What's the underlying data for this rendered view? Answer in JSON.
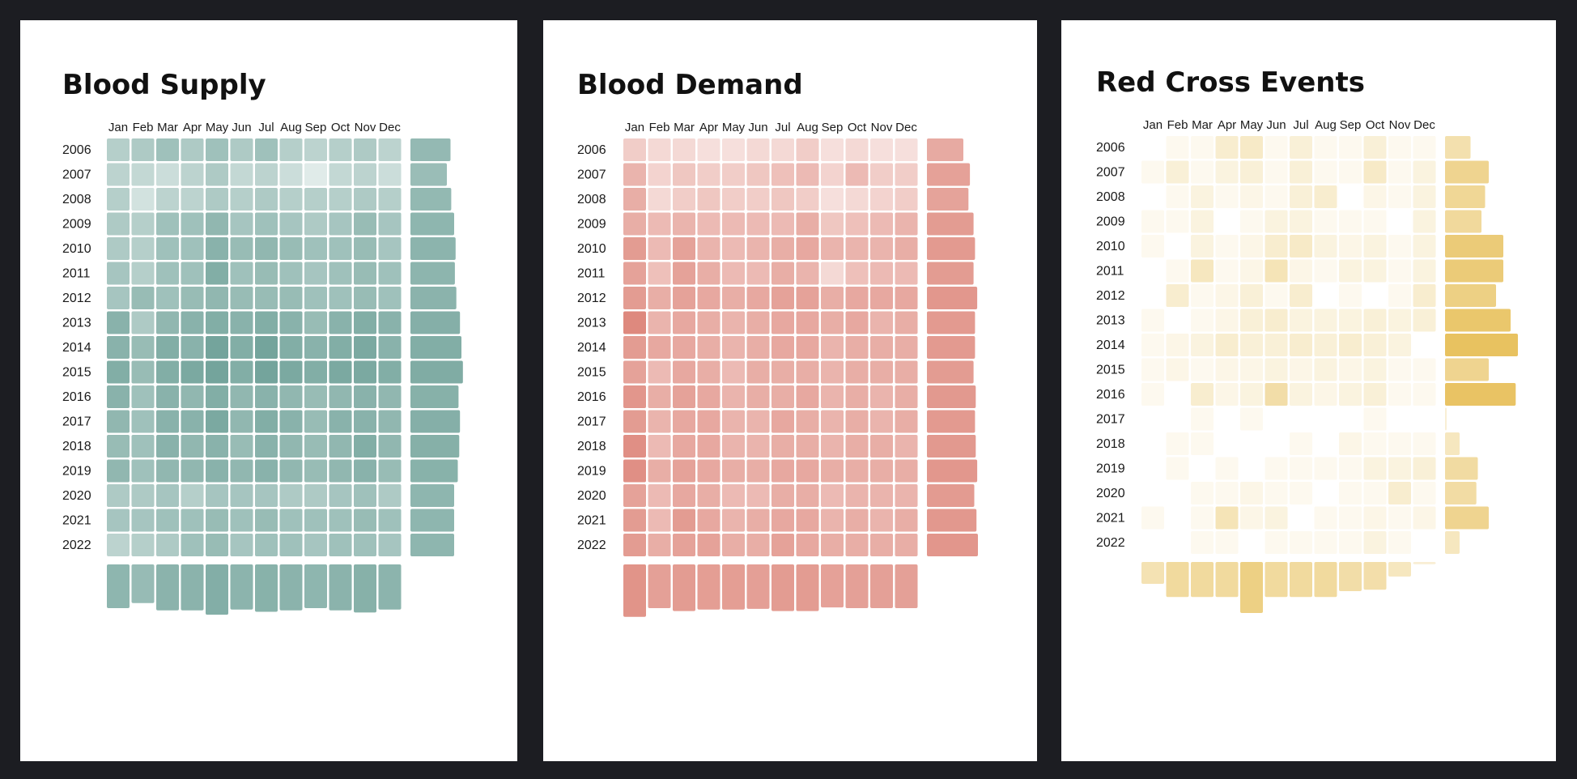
{
  "chart_data": [
    {
      "type": "heatmap",
      "title": "Blood Supply",
      "color": "#5e968c",
      "months": [
        "Jan",
        "Feb",
        "Mar",
        "Apr",
        "May",
        "Jun",
        "Jul",
        "Aug",
        "Sep",
        "Oct",
        "Nov",
        "Dec"
      ],
      "years": [
        "2006",
        "2007",
        "2008",
        "2009",
        "2010",
        "2011",
        "2012",
        "2013",
        "2014",
        "2015",
        "2016",
        "2017",
        "2018",
        "2019",
        "2020",
        "2021",
        "2022"
      ],
      "values": [
        [
          0.4,
          0.45,
          0.55,
          0.45,
          0.55,
          0.45,
          0.55,
          0.4,
          0.35,
          0.4,
          0.45,
          0.35
        ],
        [
          0.35,
          0.3,
          0.25,
          0.35,
          0.45,
          0.3,
          0.35,
          0.25,
          0.1,
          0.3,
          0.35,
          0.25
        ],
        [
          0.4,
          0.2,
          0.35,
          0.35,
          0.45,
          0.4,
          0.45,
          0.4,
          0.4,
          0.4,
          0.45,
          0.4
        ],
        [
          0.45,
          0.4,
          0.55,
          0.55,
          0.65,
          0.5,
          0.55,
          0.5,
          0.45,
          0.5,
          0.6,
          0.5
        ],
        [
          0.45,
          0.4,
          0.55,
          0.55,
          0.7,
          0.6,
          0.65,
          0.6,
          0.55,
          0.55,
          0.6,
          0.5
        ],
        [
          0.5,
          0.4,
          0.55,
          0.55,
          0.75,
          0.55,
          0.6,
          0.55,
          0.5,
          0.55,
          0.6,
          0.55
        ],
        [
          0.5,
          0.6,
          0.55,
          0.6,
          0.65,
          0.6,
          0.6,
          0.6,
          0.55,
          0.55,
          0.6,
          0.55
        ],
        [
          0.7,
          0.45,
          0.65,
          0.7,
          0.75,
          0.7,
          0.75,
          0.7,
          0.6,
          0.7,
          0.75,
          0.7
        ],
        [
          0.7,
          0.6,
          0.75,
          0.7,
          0.85,
          0.75,
          0.85,
          0.75,
          0.7,
          0.75,
          0.8,
          0.7
        ],
        [
          0.75,
          0.6,
          0.75,
          0.8,
          0.85,
          0.75,
          0.85,
          0.8,
          0.75,
          0.8,
          0.8,
          0.75
        ],
        [
          0.7,
          0.55,
          0.7,
          0.65,
          0.75,
          0.65,
          0.7,
          0.65,
          0.6,
          0.65,
          0.7,
          0.65
        ],
        [
          0.65,
          0.55,
          0.7,
          0.7,
          0.8,
          0.65,
          0.75,
          0.7,
          0.6,
          0.7,
          0.7,
          0.65
        ],
        [
          0.6,
          0.55,
          0.7,
          0.65,
          0.7,
          0.6,
          0.7,
          0.65,
          0.6,
          0.65,
          0.75,
          0.65
        ],
        [
          0.65,
          0.55,
          0.65,
          0.65,
          0.7,
          0.65,
          0.7,
          0.65,
          0.6,
          0.65,
          0.7,
          0.6
        ],
        [
          0.45,
          0.45,
          0.5,
          0.4,
          0.5,
          0.5,
          0.5,
          0.45,
          0.45,
          0.5,
          0.55,
          0.45
        ],
        [
          0.5,
          0.5,
          0.55,
          0.55,
          0.6,
          0.55,
          0.6,
          0.55,
          0.55,
          0.55,
          0.6,
          0.55
        ],
        [
          0.35,
          0.4,
          0.45,
          0.55,
          0.6,
          0.5,
          0.55,
          0.55,
          0.5,
          0.55,
          0.55,
          0.5
        ]
      ],
      "row_totals": [
        0.55,
        0.5,
        0.56,
        0.6,
        0.62,
        0.61,
        0.63,
        0.68,
        0.7,
        0.72,
        0.66,
        0.68,
        0.67,
        0.65,
        0.6,
        0.6,
        0.6
      ],
      "col_totals": [
        0.6,
        0.53,
        0.63,
        0.63,
        0.69,
        0.62,
        0.65,
        0.63,
        0.6,
        0.63,
        0.66,
        0.62
      ]
    },
    {
      "type": "heatmap",
      "title": "Blood Demand",
      "color": "#d9776a",
      "months": [
        "Jan",
        "Feb",
        "Mar",
        "Apr",
        "May",
        "Jun",
        "Jul",
        "Aug",
        "Sep",
        "Oct",
        "Nov",
        "Dec"
      ],
      "years": [
        "2006",
        "2007",
        "2008",
        "2009",
        "2010",
        "2011",
        "2012",
        "2013",
        "2014",
        "2015",
        "2016",
        "2017",
        "2018",
        "2019",
        "2020",
        "2021",
        "2022"
      ],
      "values": [
        [
          0.3,
          0.2,
          0.2,
          0.15,
          0.15,
          0.2,
          0.2,
          0.3,
          0.15,
          0.2,
          0.15,
          0.15
        ],
        [
          0.5,
          0.25,
          0.35,
          0.3,
          0.3,
          0.35,
          0.4,
          0.45,
          0.25,
          0.45,
          0.3,
          0.3
        ],
        [
          0.55,
          0.2,
          0.3,
          0.35,
          0.3,
          0.3,
          0.35,
          0.3,
          0.15,
          0.2,
          0.25,
          0.3
        ],
        [
          0.55,
          0.45,
          0.5,
          0.45,
          0.45,
          0.45,
          0.45,
          0.55,
          0.35,
          0.4,
          0.45,
          0.5
        ],
        [
          0.7,
          0.45,
          0.65,
          0.5,
          0.45,
          0.5,
          0.55,
          0.6,
          0.5,
          0.5,
          0.5,
          0.55
        ],
        [
          0.65,
          0.4,
          0.65,
          0.55,
          0.45,
          0.45,
          0.55,
          0.5,
          0.2,
          0.4,
          0.45,
          0.45
        ],
        [
          0.7,
          0.55,
          0.65,
          0.6,
          0.55,
          0.6,
          0.65,
          0.65,
          0.55,
          0.6,
          0.6,
          0.6
        ],
        [
          0.85,
          0.5,
          0.6,
          0.55,
          0.5,
          0.55,
          0.6,
          0.6,
          0.55,
          0.6,
          0.5,
          0.55
        ],
        [
          0.7,
          0.6,
          0.6,
          0.55,
          0.5,
          0.55,
          0.6,
          0.6,
          0.5,
          0.55,
          0.55,
          0.55
        ],
        [
          0.65,
          0.45,
          0.6,
          0.55,
          0.45,
          0.55,
          0.55,
          0.55,
          0.5,
          0.55,
          0.55,
          0.55
        ],
        [
          0.75,
          0.55,
          0.65,
          0.6,
          0.5,
          0.55,
          0.55,
          0.6,
          0.5,
          0.55,
          0.5,
          0.55
        ],
        [
          0.7,
          0.5,
          0.6,
          0.6,
          0.5,
          0.5,
          0.6,
          0.55,
          0.5,
          0.55,
          0.5,
          0.55
        ],
        [
          0.8,
          0.45,
          0.6,
          0.6,
          0.5,
          0.5,
          0.55,
          0.55,
          0.5,
          0.55,
          0.55,
          0.5
        ],
        [
          0.8,
          0.55,
          0.65,
          0.6,
          0.55,
          0.55,
          0.6,
          0.6,
          0.55,
          0.55,
          0.55,
          0.55
        ],
        [
          0.65,
          0.45,
          0.6,
          0.55,
          0.45,
          0.45,
          0.55,
          0.55,
          0.45,
          0.5,
          0.5,
          0.5
        ],
        [
          0.7,
          0.45,
          0.7,
          0.6,
          0.5,
          0.55,
          0.6,
          0.6,
          0.5,
          0.55,
          0.5,
          0.55
        ],
        [
          0.7,
          0.55,
          0.65,
          0.65,
          0.55,
          0.55,
          0.65,
          0.6,
          0.55,
          0.55,
          0.55,
          0.55
        ]
      ],
      "row_totals": [
        0.5,
        0.59,
        0.57,
        0.64,
        0.66,
        0.64,
        0.69,
        0.66,
        0.66,
        0.64,
        0.67,
        0.66,
        0.67,
        0.69,
        0.65,
        0.68,
        0.7
      ],
      "col_totals": [
        0.72,
        0.6,
        0.64,
        0.62,
        0.62,
        0.61,
        0.64,
        0.64,
        0.59,
        0.6,
        0.6,
        0.6
      ]
    },
    {
      "type": "heatmap",
      "title": "Red Cross Events",
      "color": "#e8c260",
      "months": [
        "Jan",
        "Feb",
        "Mar",
        "Apr",
        "May",
        "Jun",
        "Jul",
        "Aug",
        "Sep",
        "Oct",
        "Nov",
        "Dec"
      ],
      "years": [
        "2006",
        "2007",
        "2008",
        "2009",
        "2010",
        "2011",
        "2012",
        "2013",
        "2014",
        "2015",
        "2016",
        "2017",
        "2018",
        "2019",
        "2020",
        "2021",
        "2022"
      ],
      "values": [
        [
          0.0,
          0.1,
          0.1,
          0.3,
          0.35,
          0.1,
          0.25,
          0.1,
          0.1,
          0.25,
          0.1,
          0.1
        ],
        [
          0.1,
          0.25,
          0.1,
          0.2,
          0.25,
          0.1,
          0.25,
          0.1,
          0.1,
          0.35,
          0.1,
          0.2
        ],
        [
          0.0,
          0.1,
          0.2,
          0.1,
          0.15,
          0.1,
          0.25,
          0.3,
          0.0,
          0.15,
          0.1,
          0.2
        ],
        [
          0.1,
          0.1,
          0.2,
          0.0,
          0.1,
          0.2,
          0.2,
          0.1,
          0.1,
          0.1,
          0.0,
          0.2
        ],
        [
          0.1,
          0.0,
          0.2,
          0.1,
          0.15,
          0.3,
          0.35,
          0.2,
          0.15,
          0.2,
          0.1,
          0.2
        ],
        [
          0.0,
          0.1,
          0.4,
          0.1,
          0.15,
          0.45,
          0.15,
          0.1,
          0.2,
          0.2,
          0.1,
          0.2
        ],
        [
          0.0,
          0.3,
          0.1,
          0.15,
          0.25,
          0.1,
          0.3,
          0.0,
          0.1,
          0.0,
          0.1,
          0.3
        ],
        [
          0.1,
          0.0,
          0.1,
          0.15,
          0.25,
          0.3,
          0.2,
          0.2,
          0.2,
          0.25,
          0.2,
          0.25
        ],
        [
          0.1,
          0.15,
          0.2,
          0.3,
          0.25,
          0.25,
          0.3,
          0.25,
          0.3,
          0.25,
          0.2,
          0.0
        ],
        [
          0.1,
          0.15,
          0.1,
          0.15,
          0.15,
          0.2,
          0.15,
          0.2,
          0.15,
          0.2,
          0.1,
          0.1
        ],
        [
          0.1,
          0.0,
          0.3,
          0.15,
          0.2,
          0.55,
          0.2,
          0.15,
          0.2,
          0.25,
          0.1,
          0.1
        ],
        [
          0.0,
          0.0,
          0.1,
          0.0,
          0.1,
          0.0,
          0.0,
          0.0,
          0.0,
          0.1,
          0.0,
          0.0
        ],
        [
          0.0,
          0.1,
          0.1,
          0.0,
          0.0,
          0.0,
          0.1,
          0.0,
          0.15,
          0.1,
          0.1,
          0.1
        ],
        [
          0.0,
          0.1,
          0.0,
          0.1,
          0.0,
          0.1,
          0.1,
          0.1,
          0.1,
          0.2,
          0.2,
          0.25
        ],
        [
          0.0,
          0.0,
          0.1,
          0.1,
          0.15,
          0.1,
          0.1,
          0.0,
          0.1,
          0.1,
          0.3,
          0.1
        ],
        [
          0.1,
          0.0,
          0.1,
          0.45,
          0.15,
          0.2,
          0.0,
          0.1,
          0.1,
          0.15,
          0.1,
          0.15
        ],
        [
          0.0,
          0.0,
          0.1,
          0.1,
          0.0,
          0.1,
          0.1,
          0.1,
          0.1,
          0.2,
          0.1,
          0.0
        ]
      ],
      "row_totals": [
        0.35,
        0.6,
        0.55,
        0.5,
        0.8,
        0.8,
        0.7,
        0.9,
        1.0,
        0.6,
        0.97,
        0.02,
        0.2,
        0.45,
        0.43,
        0.6,
        0.2
      ],
      "col_totals": [
        0.3,
        0.48,
        0.48,
        0.48,
        0.7,
        0.48,
        0.48,
        0.48,
        0.4,
        0.38,
        0.2,
        0.03
      ]
    }
  ]
}
